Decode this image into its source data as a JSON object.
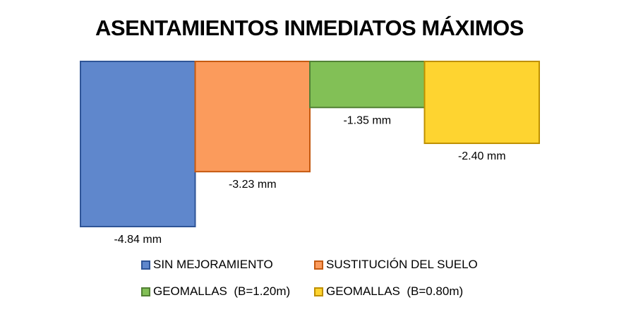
{
  "chart_data": {
    "type": "bar",
    "title": "ASENTAMIENTOS INMEDIATOS MÁXIMOS",
    "categories": [
      "SIN MEJORAMIENTO",
      "SUSTITUCIÓN DEL SUELO",
      "GEOMALLAS  (B=1.20m)",
      "GEOMALLAS  (B=0.80m)"
    ],
    "values": [
      -4.84,
      -3.23,
      -1.35,
      -2.4
    ],
    "data_labels": [
      "-4.84 mm",
      "-3.23 mm",
      "-1.35 mm",
      "-2.40 mm"
    ],
    "unit": "mm",
    "colors": [
      "#5f87cc",
      "#fb9b5c",
      "#82c056",
      "#fed430"
    ],
    "border_colors": [
      "#2f5597",
      "#c55a11",
      "#538135",
      "#bf9000"
    ],
    "grid": false,
    "legend_position": "bottom",
    "ylim": [
      -4.84,
      0
    ]
  }
}
